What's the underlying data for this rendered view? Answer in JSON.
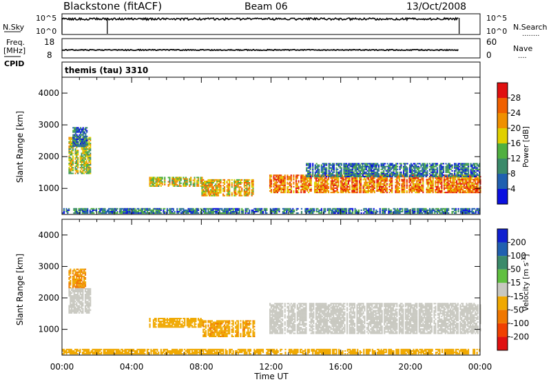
{
  "header": {
    "radar": "Blackstone (fitACF)",
    "beam": "Beam 06",
    "date": "13/Oct/2008"
  },
  "nsky_panel": {
    "left_label": "N.Sky",
    "left_ticks": [
      "10^5",
      "10^0"
    ],
    "right_ticks": [
      "10^5",
      "10^0"
    ],
    "right_label": "N.Search",
    "right_marker": "........"
  },
  "freq_panel": {
    "left_label_line1": "Freq.",
    "left_label_line2": "[MHz]",
    "cpid_label": "CPID",
    "left_ticks": [
      "18",
      "8"
    ],
    "right_ticks": [
      "60",
      "0"
    ],
    "right_label": "Nave",
    "right_marker": "...."
  },
  "cpid_text": "themis (tau) 3310",
  "x_axis": {
    "label": "Time UT",
    "ticks": [
      "00:00",
      "04:00",
      "08:00",
      "12:00",
      "16:00",
      "20:00",
      "00:00"
    ]
  },
  "colors": {
    "power": [
      "#0a10e0",
      "#2060b0",
      "#3a8a6a",
      "#50b040",
      "#e0d000",
      "#f09000",
      "#f06000",
      "#e01010"
    ],
    "velocity": [
      "#e01010",
      "#f04000",
      "#f07800",
      "#f0a800",
      "#c8c8c0",
      "#60c040",
      "#3a8a6a",
      "#2060b0",
      "#1020d0"
    ]
  },
  "chart_data": [
    {
      "type": "heatmap",
      "title": "",
      "ylabel": "Slant Range [km]",
      "xlabel": "",
      "xlim": [
        0,
        24
      ],
      "ylim": [
        180,
        4500
      ],
      "yticks": [
        1000,
        2000,
        3000,
        4000
      ],
      "colorbar": {
        "label": "Power [dB]",
        "ticks": [
          "4",
          "8",
          "12",
          "16",
          "20",
          "24",
          "28"
        ],
        "range": [
          0,
          32
        ]
      },
      "regions": [
        {
          "t0": 0.3,
          "t1": 1.6,
          "r0": 1450,
          "r1": 2600,
          "value": 16
        },
        {
          "t0": 0.6,
          "t1": 1.4,
          "r0": 2300,
          "r1": 2900,
          "value": 8
        },
        {
          "t0": 5.0,
          "t1": 8.0,
          "r0": 1050,
          "r1": 1350,
          "value": 18
        },
        {
          "t0": 8.0,
          "t1": 11.0,
          "r0": 750,
          "r1": 1250,
          "value": 20
        },
        {
          "t0": 11.9,
          "t1": 24.0,
          "r0": 850,
          "r1": 1400,
          "value": 24
        },
        {
          "t0": 14.0,
          "t1": 24.0,
          "r0": 1350,
          "r1": 1800,
          "value": 8
        },
        {
          "t0": 0.0,
          "t1": 24.0,
          "r0": 200,
          "r1": 350,
          "value": 8
        }
      ]
    },
    {
      "type": "heatmap",
      "title": "",
      "ylabel": "Slant Range [km]",
      "xlabel": "Time UT",
      "xlim": [
        0,
        24
      ],
      "ylim": [
        180,
        4500
      ],
      "yticks": [
        1000,
        2000,
        3000,
        4000
      ],
      "colorbar": {
        "label": "Velocity [m s^-1]",
        "ticks": [
          "-200",
          "-100",
          "-50",
          "-15",
          "15",
          "50",
          "100",
          "200"
        ]
      },
      "regions": [
        {
          "t0": 0.3,
          "t1": 1.3,
          "r0": 2300,
          "r1": 2900,
          "value": -50
        },
        {
          "t0": 0.3,
          "t1": 1.6,
          "r0": 1500,
          "r1": 2300,
          "value": 0
        },
        {
          "t0": 5.0,
          "t1": 8.0,
          "r0": 1050,
          "r1": 1350,
          "value": -30
        },
        {
          "t0": 8.0,
          "t1": 11.0,
          "r0": 750,
          "r1": 1250,
          "value": -40
        },
        {
          "t0": 11.9,
          "t1": 24.0,
          "r0": 850,
          "r1": 1800,
          "value": 0
        },
        {
          "t0": 0.0,
          "t1": 24.0,
          "r0": 200,
          "r1": 350,
          "value": -30
        }
      ]
    }
  ]
}
